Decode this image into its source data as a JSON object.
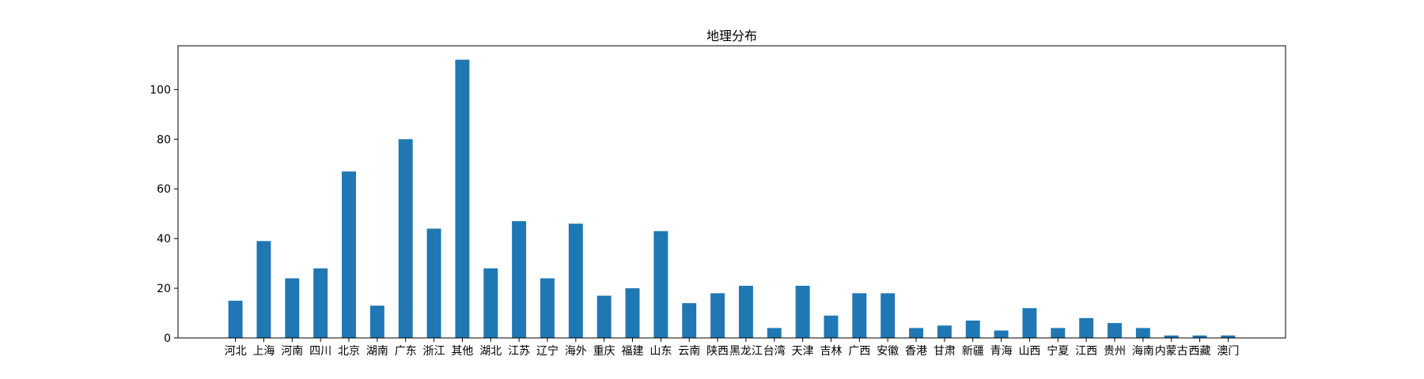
{
  "chart_data": {
    "type": "bar",
    "title": "地理分布",
    "xlabel": "",
    "ylabel": "",
    "categories": [
      "河北",
      "上海",
      "河南",
      "四川",
      "北京",
      "湖南",
      "广东",
      "浙江",
      "其他",
      "湖北",
      "江苏",
      "辽宁",
      "海外",
      "重庆",
      "福建",
      "山东",
      "云南",
      "陕西",
      "黑龙江",
      "台湾",
      "天津",
      "吉林",
      "广西",
      "安徽",
      "香港",
      "甘肃",
      "新疆",
      "青海",
      "山西",
      "宁夏",
      "江西",
      "贵州",
      "海南",
      "内蒙古",
      "西藏",
      "澳门"
    ],
    "values": [
      15,
      39,
      24,
      28,
      67,
      13,
      80,
      44,
      112,
      28,
      47,
      24,
      46,
      17,
      20,
      43,
      14,
      18,
      21,
      4,
      21,
      9,
      18,
      18,
      4,
      5,
      7,
      3,
      12,
      4,
      8,
      6,
      4,
      1,
      1,
      1
    ],
    "ylim": [
      0,
      117.6
    ],
    "yticks": [
      0,
      20,
      40,
      60,
      80,
      100
    ],
    "grid": false,
    "bar_color": "#1f77b4"
  }
}
